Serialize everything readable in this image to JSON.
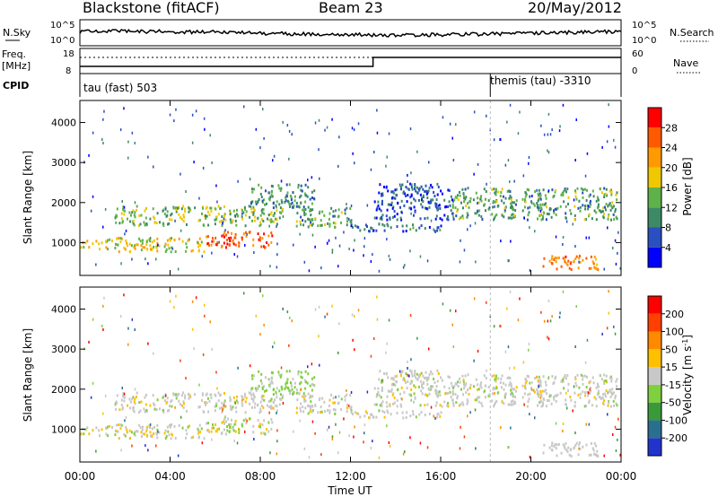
{
  "header": {
    "station": "Blackstone (fitACF)",
    "beam": "Beam 23",
    "date": "20/May/2012"
  },
  "noise_panel": {
    "left_label": "N.Sky",
    "left_ticks": [
      "10^5",
      "10^0"
    ],
    "right_ticks": [
      "10^5",
      "10^0"
    ],
    "right_label": "N.Search"
  },
  "freq_panel": {
    "left_label_1": "Freq.",
    "left_label_2": "[MHz]",
    "left_ticks": [
      "18",
      "8"
    ],
    "right_ticks": [
      "60",
      "0"
    ],
    "right_label": "Nave"
  },
  "cpid_panel": {
    "label": "CPID",
    "mode_1": "tau (fast) 503",
    "mode_2": "themis (tau) -3310"
  },
  "power_panel": {
    "ylabel": "Slant Range [km]",
    "yticks": [
      "4000",
      "3000",
      "2000",
      "1000"
    ],
    "colorbar_label": "Power [dB]",
    "colorbar_ticks": [
      "28",
      "24",
      "20",
      "16",
      "12",
      "8",
      "4"
    ],
    "colors": [
      "#0000ff",
      "#2a4fc0",
      "#3d8a66",
      "#5fb24a",
      "#f0c800",
      "#ff9a00",
      "#ff5a00",
      "#ff0000"
    ]
  },
  "velocity_panel": {
    "ylabel": "Slant Range [km]",
    "yticks": [
      "4000",
      "3000",
      "2000",
      "1000"
    ],
    "colorbar_label": "Velocity [m s",
    "colorbar_sup": "-1",
    "colorbar_end": "]",
    "colorbar_ticks": [
      "200",
      "100",
      "50",
      "15",
      "-15",
      "-50",
      "-100",
      "-200"
    ],
    "colors": [
      "#2233cc",
      "#2b6f8f",
      "#3a9a3a",
      "#7fd03f",
      "#c8c8c8",
      "#ffc000",
      "#ff8a00",
      "#ff4000",
      "#ff0000"
    ]
  },
  "time_axis": {
    "label": "Time UT",
    "ticks": [
      "00:00",
      "04:00",
      "08:00",
      "12:00",
      "16:00",
      "20:00",
      "00:00"
    ]
  },
  "chart_data": {
    "type": "heatmap",
    "x_range_hours": [
      0,
      24
    ],
    "y_range_km": [
      180,
      4550
    ],
    "cpid_change_hour": 18.2,
    "freq_step": {
      "hour": 13.0,
      "before": "low",
      "after": "high"
    },
    "scatter_regions": [
      {
        "x0": 0.0,
        "x1": 5.5,
        "y0": 800,
        "y1": 1150,
        "power_db": 18
      },
      {
        "x0": 1.5,
        "x1": 9.0,
        "y0": 1450,
        "y1": 1950,
        "power_db": 14
      },
      {
        "x0": 5.5,
        "x1": 8.5,
        "y0": 900,
        "y1": 1300,
        "power_db": 26
      },
      {
        "x0": 7.5,
        "x1": 10.5,
        "y0": 1900,
        "y1": 2500,
        "power_db": 10
      },
      {
        "x0": 9.5,
        "x1": 12.0,
        "y0": 1400,
        "y1": 1900,
        "power_db": 12
      },
      {
        "x0": 16.5,
        "x1": 23.8,
        "y0": 1600,
        "y1": 2400,
        "power_db": 12
      },
      {
        "x0": 20.5,
        "x1": 23.0,
        "y0": 350,
        "y1": 700,
        "power_db": 24
      },
      {
        "x0": 12.0,
        "x1": 16.0,
        "y0": 1300,
        "y1": 1500,
        "power_db": 8
      },
      {
        "x0": 13.0,
        "x1": 16.5,
        "y0": 1600,
        "y1": 2500,
        "power_db": 6
      }
    ]
  }
}
